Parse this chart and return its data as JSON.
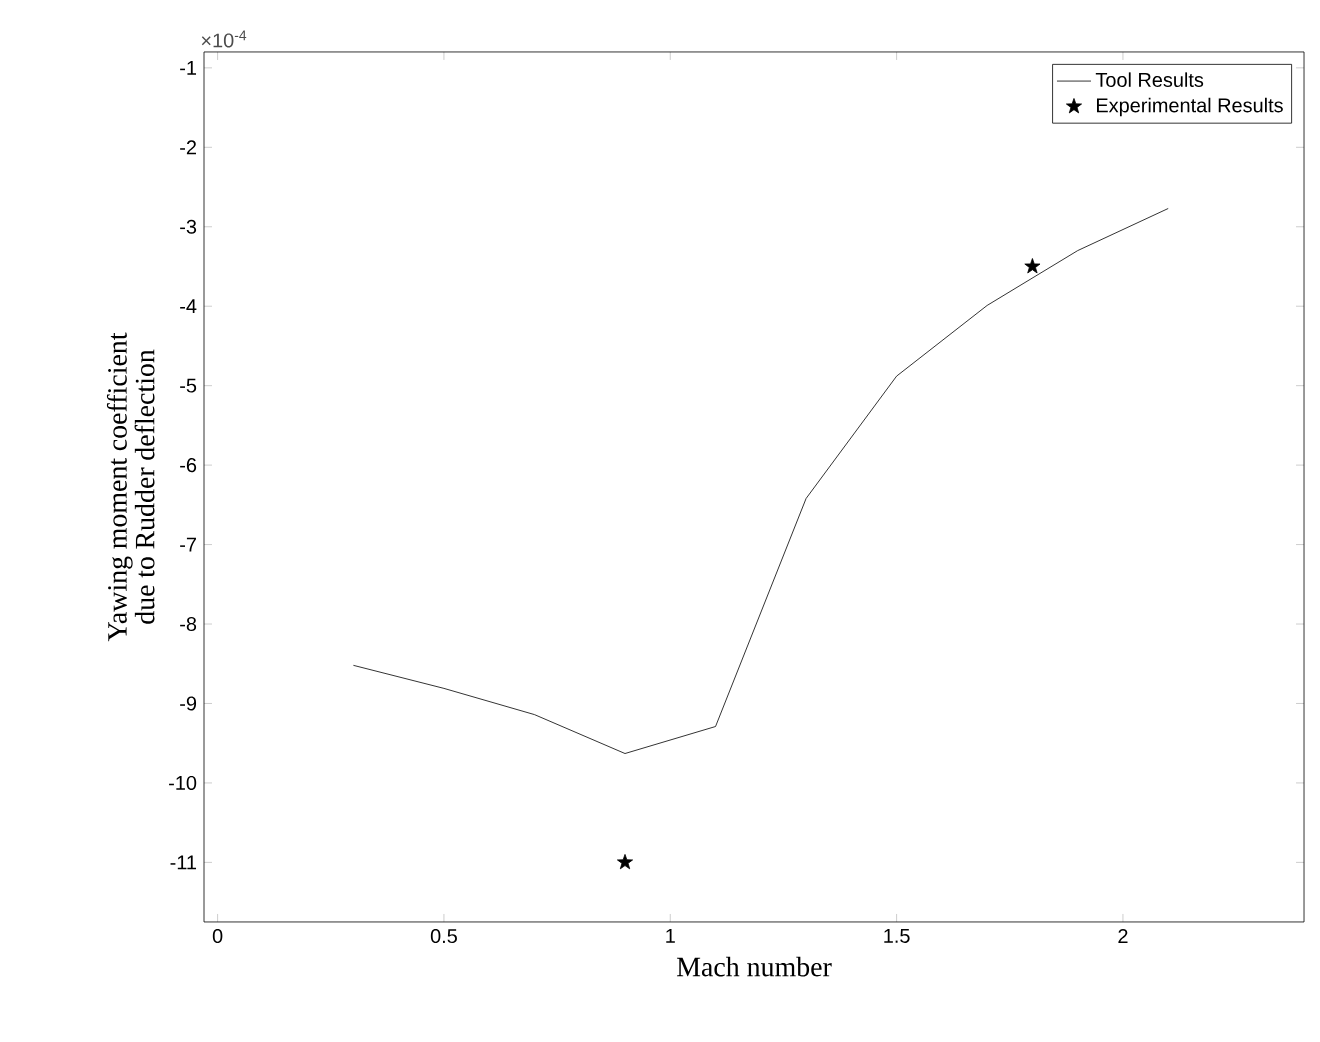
{
  "chart_data": {
    "type": "line",
    "xlabel": "Mach number",
    "ylabel": "Yawing moment coefficient due to Rudder deflection",
    "annotations": [
      "×10$^{-4}$"
    ],
    "xlim": [
      -0.03,
      2.4
    ],
    "ylim": [
      -11.75,
      -0.8
    ],
    "xticks": [
      0,
      0.5,
      1,
      1.5,
      2
    ],
    "yticks": [
      -11,
      -10,
      -9,
      -8,
      -7,
      -6,
      -5,
      -4,
      -3,
      -2,
      -1
    ],
    "legend": "top right",
    "grid": false,
    "series": [
      {
        "name": "Tool Results",
        "color": "#000000",
        "marker": "none",
        "line_style": "solid",
        "x": [
          0.3,
          0.5,
          0.7,
          0.9,
          1.1,
          1.3,
          1.5,
          1.7,
          1.9,
          2.1
        ],
        "values": [
          -8.52,
          -8.81,
          -9.14,
          -9.63,
          -9.29,
          -6.42,
          -4.88,
          -3.99,
          -3.3,
          -2.77
        ]
      },
      {
        "name": "Experimental Results",
        "type": "scatter",
        "color": "#000000",
        "marker": "star",
        "x": [
          0.9,
          1.8
        ],
        "values": [
          -11,
          -3.5
        ]
      }
    ]
  }
}
